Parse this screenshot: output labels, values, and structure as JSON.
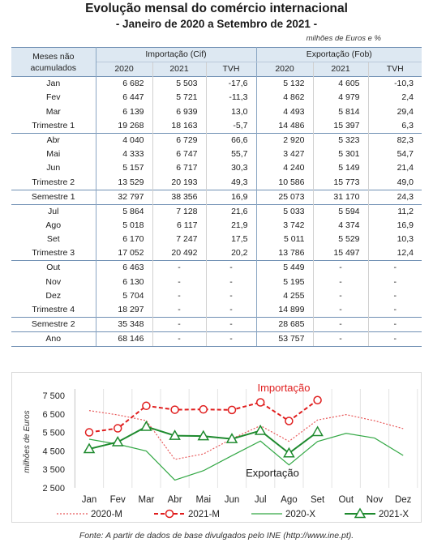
{
  "header": {
    "title": "Evolução mensal do comércio internacional",
    "subtitle": "- Janeiro de 2020 a Setembro de 2021 -",
    "units": "milhões de Euros e %"
  },
  "table": {
    "col_month_line1": "Meses não",
    "col_month_line2": "acumulados",
    "group_import": "Importação (Cif)",
    "group_export": "Exportação (Fob)",
    "sub": [
      "2020",
      "2021",
      "TVH",
      "2020",
      "2021",
      "TVH"
    ],
    "rows": [
      {
        "label": "Jan",
        "v": [
          "6 682",
          "5 503",
          "-17,6",
          "5 132",
          "4 605",
          "-10,3"
        ],
        "top": false
      },
      {
        "label": "Fev",
        "v": [
          "6 447",
          "5 721",
          "-11,3",
          "4 862",
          "4 979",
          "2,4"
        ],
        "top": false
      },
      {
        "label": "Mar",
        "v": [
          "6 139",
          "6 939",
          "13,0",
          "4 493",
          "5 814",
          "29,4"
        ],
        "top": false
      },
      {
        "label": "Trimestre 1",
        "v": [
          "19 268",
          "18 163",
          "-5,7",
          "14 486",
          "15 397",
          "6,3"
        ],
        "top": false
      },
      {
        "label": "Abr",
        "v": [
          "4 040",
          "6 729",
          "66,6",
          "2 920",
          "5 323",
          "82,3"
        ],
        "top": true
      },
      {
        "label": "Mai",
        "v": [
          "4 333",
          "6 747",
          "55,7",
          "3 427",
          "5 301",
          "54,7"
        ],
        "top": false
      },
      {
        "label": "Jun",
        "v": [
          "5 157",
          "6 717",
          "30,3",
          "4 240",
          "5 149",
          "21,4"
        ],
        "top": false
      },
      {
        "label": "Trimestre 2",
        "v": [
          "13 529",
          "20 193",
          "49,3",
          "10 586",
          "15 773",
          "49,0"
        ],
        "top": false
      },
      {
        "label": "Semestre 1",
        "v": [
          "32 797",
          "38 356",
          "16,9",
          "25 073",
          "31 170",
          "24,3"
        ],
        "top": true
      },
      {
        "label": "Jul",
        "v": [
          "5 864",
          "7 128",
          "21,6",
          "5 033",
          "5 594",
          "11,2"
        ],
        "top": true
      },
      {
        "label": "Ago",
        "v": [
          "5 018",
          "6 117",
          "21,9",
          "3 742",
          "4 374",
          "16,9"
        ],
        "top": false
      },
      {
        "label": "Set",
        "v": [
          "6 170",
          "7 247",
          "17,5",
          "5 011",
          "5 529",
          "10,3"
        ],
        "top": false
      },
      {
        "label": "Trimestre 3",
        "v": [
          "17 052",
          "20 492",
          "20,2",
          "13 786",
          "15 497",
          "12,4"
        ],
        "top": false
      },
      {
        "label": "Out",
        "v": [
          "6 463",
          "-",
          "-",
          "5 449",
          "-",
          "-"
        ],
        "top": true
      },
      {
        "label": "Nov",
        "v": [
          "6 130",
          "-",
          "-",
          "5 195",
          "-",
          "-"
        ],
        "top": false
      },
      {
        "label": "Dez",
        "v": [
          "5 704",
          "-",
          "-",
          "4 255",
          "-",
          "-"
        ],
        "top": false
      },
      {
        "label": "Trimestre 4",
        "v": [
          "18 297",
          "-",
          "-",
          "14 899",
          "-",
          "-"
        ],
        "top": false
      },
      {
        "label": "Semestre 2",
        "v": [
          "35 348",
          "-",
          "-",
          "28 685",
          "-",
          "-"
        ],
        "top": true
      },
      {
        "label": "Ano",
        "v": [
          "68 146",
          "-",
          "-",
          "53 757",
          "-",
          "-"
        ],
        "top": true
      }
    ]
  },
  "chart_data": {
    "type": "line",
    "categories": [
      "Jan",
      "Fev",
      "Mar",
      "Abr",
      "Mai",
      "Jun",
      "Jul",
      "Ago",
      "Set",
      "Out",
      "Nov",
      "Dez"
    ],
    "ylabel": "milhões de Euros",
    "ylim": [
      2500,
      7500
    ],
    "yticks": [
      2500,
      3500,
      4500,
      5500,
      6500,
      7500
    ],
    "ytick_labels": [
      "2 500",
      "3 500",
      "4 500",
      "5 500",
      "6 500",
      "7 500"
    ],
    "grid": "vertical",
    "legend": "bottom",
    "series": [
      {
        "name": "2020-M",
        "values": [
          6682,
          6447,
          6139,
          4040,
          4333,
          5157,
          5864,
          5018,
          6170,
          6463,
          6130,
          5704
        ],
        "color": "#e8595a",
        "style": "dotted",
        "marker": "none"
      },
      {
        "name": "2021-M",
        "values": [
          5503,
          5721,
          6939,
          6729,
          6747,
          6717,
          7128,
          6117,
          7247,
          null,
          null,
          null
        ],
        "color": "#e01e1e",
        "style": "dashed",
        "marker": "circle"
      },
      {
        "name": "2020-X",
        "values": [
          5132,
          4862,
          4493,
          2920,
          3427,
          4240,
          5033,
          3742,
          5011,
          5449,
          5195,
          4255
        ],
        "color": "#33a845",
        "style": "solid",
        "marker": "none"
      },
      {
        "name": "2021-X",
        "values": [
          4605,
          4979,
          5814,
          5323,
          5301,
          5149,
          5594,
          4374,
          5529,
          null,
          null,
          null
        ],
        "color": "#1e8a2e",
        "style": "solid",
        "marker": "triangle"
      }
    ],
    "annotations": [
      {
        "text": "Importação",
        "color": "#e01e1e"
      },
      {
        "text": "Exportação",
        "color": "#1a1a1a"
      }
    ]
  },
  "footer": {
    "source": "Fonte: A partir de dados de base divulgados pelo INE (http://www.ine.pt)."
  }
}
